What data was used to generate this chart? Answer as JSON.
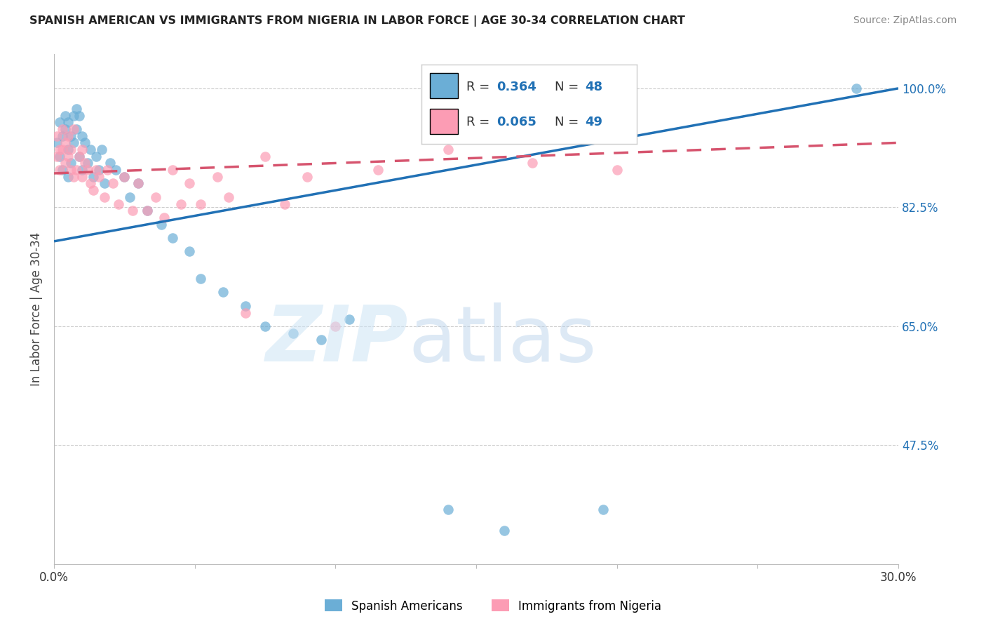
{
  "title": "SPANISH AMERICAN VS IMMIGRANTS FROM NIGERIA IN LABOR FORCE | AGE 30-34 CORRELATION CHART",
  "source": "Source: ZipAtlas.com",
  "ylabel": "In Labor Force | Age 30-34",
  "xlim": [
    0.0,
    0.3
  ],
  "ylim": [
    0.3,
    1.05
  ],
  "ytick_vals": [
    0.475,
    0.65,
    0.825,
    1.0
  ],
  "ytick_labels": [
    "47.5%",
    "65.0%",
    "82.5%",
    "100.0%"
  ],
  "blue_color": "#6baed6",
  "pink_color": "#fc9cb4",
  "line_blue": "#2171b5",
  "line_pink": "#d6546e",
  "legend_r1": "0.364",
  "legend_n1": "48",
  "legend_r2": "0.065",
  "legend_n2": "49",
  "spanish_x": [
    0.001,
    0.002,
    0.002,
    0.003,
    0.003,
    0.004,
    0.004,
    0.005,
    0.005,
    0.005,
    0.006,
    0.006,
    0.007,
    0.007,
    0.008,
    0.008,
    0.009,
    0.009,
    0.01,
    0.01,
    0.011,
    0.012,
    0.013,
    0.014,
    0.015,
    0.016,
    0.017,
    0.018,
    0.02,
    0.022,
    0.025,
    0.027,
    0.03,
    0.033,
    0.038,
    0.042,
    0.048,
    0.052,
    0.06,
    0.068,
    0.075,
    0.085,
    0.095,
    0.105,
    0.14,
    0.16,
    0.195,
    0.285
  ],
  "spanish_y": [
    0.92,
    0.95,
    0.9,
    0.93,
    0.88,
    0.94,
    0.96,
    0.95,
    0.91,
    0.87,
    0.93,
    0.89,
    0.96,
    0.92,
    0.97,
    0.94,
    0.96,
    0.9,
    0.93,
    0.88,
    0.92,
    0.89,
    0.91,
    0.87,
    0.9,
    0.88,
    0.91,
    0.86,
    0.89,
    0.88,
    0.87,
    0.84,
    0.86,
    0.82,
    0.8,
    0.78,
    0.76,
    0.72,
    0.7,
    0.68,
    0.65,
    0.64,
    0.63,
    0.66,
    0.38,
    0.35,
    0.38,
    1.0
  ],
  "nigeria_x": [
    0.001,
    0.001,
    0.002,
    0.002,
    0.003,
    0.003,
    0.004,
    0.004,
    0.005,
    0.005,
    0.006,
    0.006,
    0.007,
    0.007,
    0.008,
    0.009,
    0.01,
    0.01,
    0.011,
    0.012,
    0.013,
    0.014,
    0.015,
    0.016,
    0.018,
    0.019,
    0.021,
    0.023,
    0.025,
    0.028,
    0.03,
    0.033,
    0.036,
    0.039,
    0.042,
    0.045,
    0.048,
    0.052,
    0.058,
    0.062,
    0.068,
    0.075,
    0.082,
    0.09,
    0.1,
    0.115,
    0.14,
    0.17,
    0.2
  ],
  "nigeria_y": [
    0.93,
    0.9,
    0.91,
    0.88,
    0.94,
    0.91,
    0.92,
    0.89,
    0.93,
    0.9,
    0.88,
    0.91,
    0.94,
    0.87,
    0.88,
    0.9,
    0.91,
    0.87,
    0.89,
    0.88,
    0.86,
    0.85,
    0.88,
    0.87,
    0.84,
    0.88,
    0.86,
    0.83,
    0.87,
    0.82,
    0.86,
    0.82,
    0.84,
    0.81,
    0.88,
    0.83,
    0.86,
    0.83,
    0.87,
    0.84,
    0.67,
    0.9,
    0.83,
    0.87,
    0.65,
    0.88,
    0.91,
    0.89,
    0.88
  ]
}
